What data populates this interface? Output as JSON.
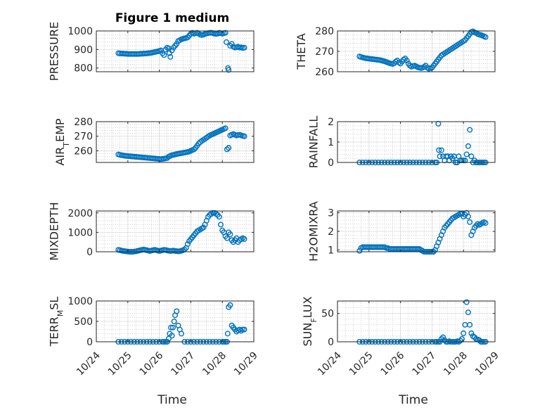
{
  "figure_title": "Figure 1 medium",
  "marker_color": "#0072BD",
  "x_tick_labels": [
    "10/24",
    "10/25",
    "10/26",
    "10/27",
    "10/28",
    "10/29"
  ],
  "chart_data": [
    {
      "type": "scatter",
      "title": "Figure 1 medium",
      "ylabel": "PRESSURE",
      "ylim": [
        780,
        1000
      ],
      "yticks": [
        "800",
        "900",
        "1000"
      ],
      "x": [
        24.7,
        24.75,
        24.8,
        24.85,
        24.9,
        24.95,
        25.0,
        25.05,
        25.1,
        25.15,
        25.2,
        25.25,
        25.3,
        25.35,
        25.4,
        25.45,
        25.5,
        25.55,
        25.6,
        25.65,
        25.7,
        25.75,
        25.8,
        25.85,
        25.9,
        25.95,
        26.0,
        26.05,
        26.1,
        26.15,
        26.2,
        26.25,
        26.3,
        26.32,
        26.35,
        26.4,
        26.45,
        26.5,
        26.55,
        26.6,
        26.65,
        26.7,
        26.75,
        26.8,
        26.85,
        26.9,
        26.95,
        27.0,
        27.05,
        27.1,
        27.15,
        27.2,
        27.25,
        27.3,
        27.35,
        27.4,
        27.45,
        27.5,
        27.55,
        27.6,
        27.65,
        27.7,
        27.75,
        27.8,
        27.85,
        27.9,
        27.95,
        28.0,
        28.05,
        28.1,
        28.13,
        28.18,
        28.2,
        28.25,
        28.3,
        28.35,
        28.4,
        28.45,
        28.5,
        28.55,
        28.6,
        28.65,
        28.7
      ],
      "y": [
        880,
        879,
        878,
        878,
        877,
        877,
        876,
        876,
        876,
        876,
        876,
        876,
        876,
        876,
        877,
        877,
        878,
        878,
        879,
        880,
        881,
        882,
        884,
        886,
        888,
        890,
        892,
        895,
        880,
        870,
        900,
        910,
        905,
        880,
        860,
        895,
        910,
        920,
        930,
        945,
        950,
        955,
        958,
        960,
        962,
        965,
        975,
        985,
        990,
        985,
        988,
        990,
        985,
        980,
        978,
        980,
        984,
        986,
        988,
        990,
        990,
        988,
        985,
        984,
        985,
        990,
        988,
        985,
        988,
        990,
        940,
        800,
        790,
        920,
        930,
        915,
        910,
        912,
        915,
        910,
        912,
        908,
        910
      ]
    },
    {
      "type": "scatter",
      "ylabel": "THETA",
      "ylim": [
        260,
        280
      ],
      "yticks": [
        "260",
        "270",
        "280"
      ],
      "x": [
        24.7,
        24.75,
        24.8,
        24.85,
        24.9,
        24.95,
        25.0,
        25.05,
        25.1,
        25.15,
        25.2,
        25.25,
        25.3,
        25.35,
        25.4,
        25.45,
        25.5,
        25.55,
        25.6,
        25.65,
        25.7,
        25.75,
        25.8,
        25.85,
        25.9,
        25.95,
        26.0,
        26.05,
        26.1,
        26.15,
        26.2,
        26.25,
        26.3,
        26.35,
        26.4,
        26.45,
        26.5,
        26.55,
        26.6,
        26.65,
        26.7,
        26.75,
        26.8,
        26.85,
        26.9,
        26.95,
        27.0,
        27.05,
        27.1,
        27.15,
        27.2,
        27.25,
        27.3,
        27.35,
        27.4,
        27.45,
        27.5,
        27.55,
        27.6,
        27.65,
        27.7,
        27.75,
        27.8,
        27.85,
        27.9,
        27.95,
        28.0,
        28.05,
        28.1,
        28.15,
        28.2,
        28.25,
        28.3,
        28.35,
        28.4,
        28.45,
        28.5,
        28.55,
        28.6,
        28.65,
        28.7
      ],
      "y": [
        267.5,
        267.2,
        267.0,
        266.8,
        266.6,
        266.5,
        266.4,
        266.3,
        266.2,
        266.1,
        266.0,
        265.9,
        265.8,
        265.7,
        265.5,
        265.3,
        265.1,
        264.8,
        264.5,
        264.2,
        264.0,
        263.8,
        264.2,
        265.0,
        265.5,
        264.5,
        264.0,
        265.0,
        266.0,
        266.5,
        265.5,
        264.0,
        263.0,
        262.5,
        262.8,
        263.0,
        262.6,
        262.2,
        262.0,
        261.8,
        262.0,
        262.4,
        263.0,
        262.0,
        261.5,
        261.8,
        262.0,
        263.0,
        264.0,
        265.0,
        266.0,
        267.0,
        268.0,
        268.5,
        269.0,
        269.5,
        270.0,
        270.5,
        271.0,
        271.5,
        272.0,
        272.5,
        273.0,
        273.5,
        274.0,
        274.5,
        275.0,
        275.5,
        276.5,
        277.5,
        278.5,
        279.5,
        279.8,
        279.3,
        279.0,
        278.5,
        278.2,
        278.0,
        277.7,
        277.4,
        277.0
      ]
    },
    {
      "type": "scatter",
      "ylabel": "AIR_TEMP",
      "ylim": [
        252,
        280
      ],
      "yticks": [
        "260",
        "270",
        "280"
      ],
      "x": [
        24.7,
        24.75,
        24.8,
        24.85,
        24.9,
        24.95,
        25.0,
        25.05,
        25.1,
        25.15,
        25.2,
        25.25,
        25.3,
        25.35,
        25.4,
        25.45,
        25.5,
        25.55,
        25.6,
        25.65,
        25.7,
        25.75,
        25.8,
        25.85,
        25.9,
        25.95,
        26.0,
        26.05,
        26.1,
        26.15,
        26.2,
        26.25,
        26.3,
        26.35,
        26.4,
        26.45,
        26.5,
        26.55,
        26.6,
        26.65,
        26.7,
        26.75,
        26.8,
        26.85,
        26.9,
        26.95,
        27.0,
        27.05,
        27.1,
        27.15,
        27.2,
        27.25,
        27.3,
        27.35,
        27.4,
        27.45,
        27.5,
        27.55,
        27.6,
        27.65,
        27.7,
        27.75,
        27.8,
        27.85,
        27.9,
        27.95,
        28.0,
        28.05,
        28.1,
        28.15,
        28.2,
        28.25,
        28.3,
        28.35,
        28.4,
        28.45,
        28.5,
        28.55,
        28.6,
        28.65,
        28.7
      ],
      "y": [
        257.5,
        257.2,
        257.0,
        256.8,
        256.6,
        256.5,
        256.4,
        256.3,
        256.2,
        256.1,
        256.0,
        255.9,
        255.8,
        255.7,
        255.6,
        255.5,
        255.4,
        255.3,
        255.2,
        255.1,
        255.0,
        254.9,
        254.8,
        254.7,
        254.6,
        254.5,
        254.4,
        254.3,
        254.4,
        254.6,
        254.8,
        255.0,
        256.0,
        256.5,
        257.0,
        257.2,
        257.5,
        257.8,
        258.0,
        258.2,
        258.4,
        258.6,
        258.8,
        259.0,
        259.2,
        259.5,
        260.0,
        260.5,
        261.0,
        262.0,
        263.5,
        265.0,
        266.0,
        266.8,
        267.5,
        268.2,
        269.0,
        269.8,
        270.5,
        271.0,
        271.5,
        272.0,
        272.5,
        273.0,
        273.5,
        274.0,
        274.5,
        275.0,
        275.5,
        261.0,
        262.0,
        270.5,
        271.0,
        271.5,
        271.0,
        270.5,
        270.8,
        271.0,
        270.6,
        270.2,
        270.0
      ]
    },
    {
      "type": "scatter",
      "ylabel": "RAINFALL",
      "ylim": [
        0,
        2
      ],
      "yticks": [
        "0",
        "1",
        "2"
      ],
      "x": [
        24.7,
        24.8,
        24.9,
        25.0,
        25.1,
        25.2,
        25.3,
        25.4,
        25.5,
        25.6,
        25.7,
        25.8,
        25.9,
        26.0,
        26.1,
        26.2,
        26.3,
        26.4,
        26.5,
        26.6,
        26.7,
        26.8,
        26.9,
        27.0,
        27.1,
        27.15,
        27.2,
        27.22,
        27.25,
        27.3,
        27.35,
        27.4,
        27.45,
        27.5,
        27.55,
        27.6,
        27.65,
        27.7,
        27.75,
        27.8,
        27.85,
        27.9,
        27.95,
        28.0,
        28.05,
        28.1,
        28.15,
        28.2,
        28.25,
        28.3,
        28.35,
        28.4,
        28.45,
        28.5,
        28.55,
        28.6,
        28.65,
        28.7
      ],
      "y": [
        0,
        0,
        0,
        0,
        0,
        0,
        0,
        0,
        0,
        0,
        0,
        0,
        0,
        0,
        0,
        0,
        0,
        0,
        0,
        0,
        0,
        0,
        0,
        0,
        0,
        0,
        1.9,
        0.6,
        0.3,
        0.6,
        0.3,
        0.1,
        0.3,
        0.3,
        0.1,
        0.3,
        0.2,
        0.3,
        0,
        0,
        0.3,
        0.1,
        0.1,
        0.1,
        0.1,
        0.4,
        0.8,
        1.6,
        0.3,
        0,
        0.1,
        0,
        0,
        0,
        0,
        0,
        0,
        0
      ]
    },
    {
      "type": "scatter",
      "ylabel": "MIXDEPTH",
      "ylim": [
        0,
        2100
      ],
      "yticks": [
        "0",
        "1000",
        "2000"
      ],
      "x": [
        24.7,
        24.75,
        24.8,
        24.85,
        24.9,
        24.95,
        25.0,
        25.05,
        25.1,
        25.15,
        25.2,
        25.25,
        25.3,
        25.35,
        25.4,
        25.45,
        25.5,
        25.55,
        25.6,
        25.65,
        25.7,
        25.75,
        25.8,
        25.85,
        25.9,
        25.95,
        26.0,
        26.05,
        26.1,
        26.15,
        26.2,
        26.25,
        26.3,
        26.35,
        26.4,
        26.45,
        26.5,
        26.55,
        26.6,
        26.65,
        26.7,
        26.75,
        26.8,
        26.85,
        26.9,
        26.95,
        27.0,
        27.05,
        27.1,
        27.15,
        27.2,
        27.25,
        27.3,
        27.35,
        27.4,
        27.45,
        27.5,
        27.55,
        27.6,
        27.65,
        27.7,
        27.75,
        27.8,
        27.85,
        27.9,
        27.95,
        28.0,
        28.05,
        28.1,
        28.15,
        28.2,
        28.25,
        28.3,
        28.35,
        28.4,
        28.45,
        28.5,
        28.55,
        28.6,
        28.65,
        28.7
      ],
      "y": [
        100,
        80,
        60,
        40,
        30,
        20,
        10,
        0,
        0,
        0,
        10,
        20,
        40,
        60,
        80,
        100,
        120,
        100,
        80,
        60,
        40,
        60,
        80,
        100,
        80,
        60,
        40,
        60,
        80,
        100,
        90,
        70,
        50,
        40,
        50,
        60,
        40,
        30,
        20,
        30,
        50,
        80,
        120,
        200,
        400,
        550,
        650,
        750,
        850,
        950,
        1050,
        1100,
        1150,
        1200,
        1250,
        1400,
        1600,
        1800,
        1900,
        1950,
        2000,
        2000,
        1950,
        1900,
        1800,
        1400,
        1100,
        1000,
        800,
        700,
        1000,
        900,
        600,
        500,
        600,
        700,
        500,
        600,
        650,
        700,
        650
      ]
    },
    {
      "type": "scatter",
      "ylabel": "H2OMIXRA",
      "ylim": [
        0.9,
        3.1
      ],
      "yticks": [
        "1",
        "2",
        "3"
      ],
      "x": [
        24.7,
        24.75,
        24.8,
        24.85,
        24.9,
        24.95,
        25.0,
        25.05,
        25.1,
        25.15,
        25.2,
        25.25,
        25.3,
        25.35,
        25.4,
        25.45,
        25.5,
        25.55,
        25.6,
        25.65,
        25.7,
        25.75,
        25.8,
        25.85,
        25.9,
        25.95,
        26.0,
        26.05,
        26.1,
        26.15,
        26.2,
        26.25,
        26.3,
        26.35,
        26.4,
        26.45,
        26.5,
        26.55,
        26.6,
        26.65,
        26.7,
        26.75,
        26.8,
        26.85,
        26.9,
        26.95,
        27.0,
        27.05,
        27.1,
        27.15,
        27.2,
        27.25,
        27.3,
        27.35,
        27.4,
        27.45,
        27.5,
        27.55,
        27.6,
        27.65,
        27.7,
        27.75,
        27.8,
        27.85,
        27.9,
        27.95,
        28.0,
        28.05,
        28.1,
        28.15,
        28.2,
        28.25,
        28.3,
        28.35,
        28.4,
        28.45,
        28.5,
        28.55,
        28.6,
        28.65,
        28.7
      ],
      "y": [
        0.95,
        1.1,
        1.15,
        1.15,
        1.15,
        1.15,
        1.15,
        1.15,
        1.15,
        1.15,
        1.15,
        1.15,
        1.15,
        1.15,
        1.15,
        1.15,
        1.15,
        1.1,
        1.1,
        1.05,
        1.05,
        1.05,
        1.05,
        1.05,
        1.05,
        1.05,
        1.05,
        1.05,
        1.05,
        1.05,
        1.05,
        1.05,
        1.05,
        1.05,
        1.05,
        1.05,
        1.05,
        1.05,
        1.05,
        1.0,
        0.95,
        0.9,
        0.9,
        0.9,
        0.9,
        0.9,
        0.9,
        0.9,
        1.0,
        1.2,
        1.4,
        1.6,
        1.8,
        2.0,
        2.2,
        2.3,
        2.4,
        2.5,
        2.6,
        2.7,
        2.75,
        2.8,
        2.85,
        2.9,
        2.95,
        2.95,
        2.8,
        2.9,
        3.0,
        2.8,
        2.5,
        1.8,
        2.0,
        2.2,
        2.3,
        2.4,
        2.35,
        2.4,
        2.45,
        2.5,
        2.45
      ]
    },
    {
      "type": "scatter",
      "ylabel": "TERR_MSL",
      "ylim": [
        0,
        1000
      ],
      "yticks": [
        "0",
        "500",
        "1000"
      ],
      "x": [
        24.7,
        24.8,
        24.9,
        25.0,
        25.1,
        25.2,
        25.3,
        25.4,
        25.5,
        25.6,
        25.7,
        25.8,
        25.9,
        26.0,
        26.1,
        26.15,
        26.2,
        26.25,
        26.3,
        26.33,
        26.37,
        26.4,
        26.43,
        26.47,
        26.5,
        26.55,
        26.6,
        26.65,
        26.7,
        26.8,
        26.9,
        27.0,
        27.1,
        27.2,
        27.3,
        27.4,
        27.5,
        27.6,
        27.7,
        27.8,
        27.9,
        28.0,
        28.05,
        28.1,
        28.15,
        28.17,
        28.2,
        28.25,
        28.3,
        28.35,
        28.4,
        28.45,
        28.5,
        28.55,
        28.6,
        28.65,
        28.7
      ],
      "y": [
        0,
        0,
        0,
        0,
        0,
        0,
        0,
        0,
        0,
        0,
        0,
        0,
        0,
        0,
        0,
        0,
        0,
        0,
        80,
        200,
        350,
        150,
        350,
        500,
        650,
        750,
        400,
        300,
        200,
        0,
        0,
        0,
        0,
        0,
        0,
        0,
        0,
        0,
        0,
        0,
        0,
        0,
        0,
        0,
        0,
        200,
        850,
        900,
        400,
        350,
        300,
        250,
        280,
        300,
        270,
        300,
        300
      ]
    },
    {
      "type": "scatter",
      "ylabel": "SUN_FLUX",
      "ylim": [
        0,
        72
      ],
      "yticks": [
        "0",
        "50"
      ],
      "x": [
        24.7,
        24.8,
        24.9,
        25.0,
        25.1,
        25.2,
        25.3,
        25.4,
        25.5,
        25.6,
        25.7,
        25.8,
        25.9,
        26.0,
        26.1,
        26.2,
        26.3,
        26.4,
        26.5,
        26.6,
        26.7,
        26.8,
        26.9,
        27.0,
        27.1,
        27.15,
        27.2,
        27.25,
        27.3,
        27.35,
        27.4,
        27.45,
        27.5,
        27.55,
        27.6,
        27.65,
        27.7,
        27.75,
        27.8,
        27.85,
        27.9,
        27.95,
        28.0,
        28.05,
        28.1,
        28.15,
        28.2,
        28.25,
        28.3,
        28.35,
        28.4,
        28.45,
        28.5,
        28.55,
        28.6,
        28.65,
        28.7
      ],
      "y": [
        0,
        0,
        0,
        0,
        0,
        0,
        0,
        0,
        0,
        0,
        0,
        0,
        0,
        0,
        0,
        0,
        0,
        0,
        0,
        0,
        0,
        0,
        0,
        0,
        0,
        0,
        0,
        0,
        5,
        8,
        3,
        0,
        0,
        1,
        0,
        0,
        0,
        0,
        1,
        0,
        2,
        5,
        15,
        30,
        70,
        52,
        30,
        15,
        10,
        8,
        5,
        4,
        3,
        0,
        0,
        0,
        0
      ]
    }
  ]
}
